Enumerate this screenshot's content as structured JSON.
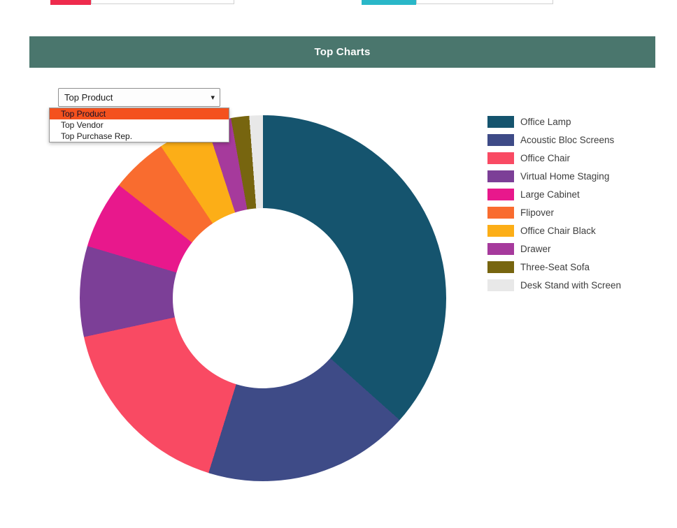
{
  "page": {
    "header_title": "Top Charts",
    "header_bg": "#4a766d"
  },
  "top_fragments": {
    "left_fill_color": "#ee2b4d",
    "left_fill_width": 58,
    "left_track_width": 203,
    "right_fill_color": "#2ab7c8",
    "right_fill_width": 78,
    "right_track_width": 194
  },
  "chart_selector": {
    "selected": "Top Product",
    "caret": "▾",
    "highlight_color": "#f4511e",
    "options": [
      "Top Product",
      "Top Vendor",
      "Top Purchase Rep."
    ]
  },
  "chart_data": {
    "type": "pie",
    "subtype": "donut",
    "title": "Top Charts",
    "legend_position": "right",
    "donut_hole_ratio": 0.49,
    "labels": [
      "Office Lamp",
      "Acoustic Bloc Screens",
      "Office Chair",
      "Virtual Home Staging",
      "Large Cabinet",
      "Flipover",
      "Office Chair Black",
      "Drawer",
      "Three-Seat Sofa",
      "Desk Stand with Screen"
    ],
    "values": [
      36.6,
      18.2,
      16.8,
      8.0,
      6.0,
      5.0,
      4.4,
      2.2,
      1.6,
      1.2
    ],
    "units": "percent-estimated",
    "colors": [
      "#15546e",
      "#3e4b87",
      "#f94a63",
      "#7c3f97",
      "#e8188c",
      "#f96c2f",
      "#fcae17",
      "#a63a9c",
      "#77650f",
      "#e8e8e8"
    ]
  }
}
